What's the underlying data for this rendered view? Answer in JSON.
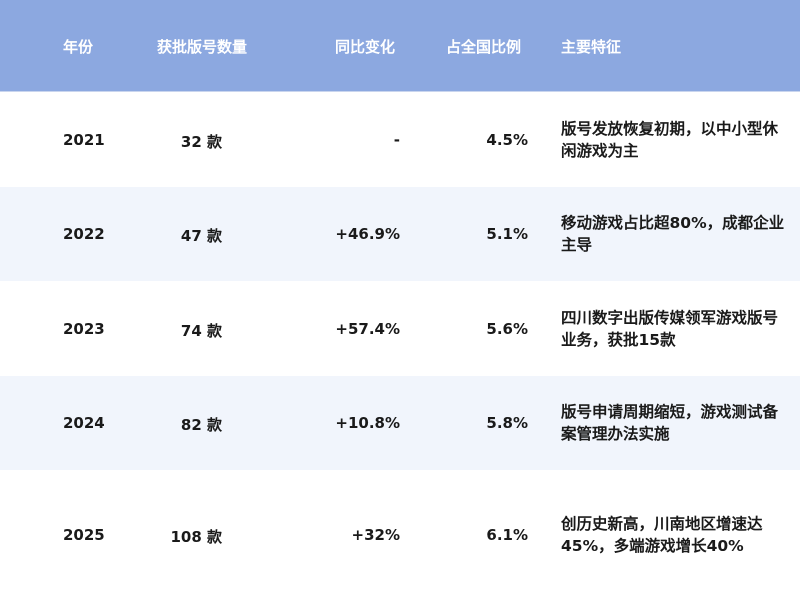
{
  "header": {
    "year": "年份",
    "count": "获批版号数量",
    "change": "同比变化",
    "ratio": "占全国比例",
    "features": "主要特征"
  },
  "colors": {
    "header_bg": "#8ca8e0",
    "alt_row_bg": "#f1f5fc"
  },
  "rows": [
    {
      "year": "2021",
      "count": "32 款",
      "change": "-",
      "ratio": "4.5%",
      "features": "版号发放恢复初期，以中小型休闲游戏为主"
    },
    {
      "year": "2022",
      "count": "47 款",
      "change": "+46.9%",
      "ratio": "5.1%",
      "features": "移动游戏占比超80%，成都企业主导"
    },
    {
      "year": "2023",
      "count": "74 款",
      "change": "+57.4%",
      "ratio": "5.6%",
      "features": "四川数字出版传媒领军游戏版号业务，获批15款"
    },
    {
      "year": "2024",
      "count": "82 款",
      "change": "+10.8%",
      "ratio": "5.8%",
      "features": "版号申请周期缩短，游戏测试备案管理办法实施"
    },
    {
      "year": "2025",
      "count": "108 款",
      "change": "+32%",
      "ratio": "6.1%",
      "features": "创历史新高，川南地区增速达45%，多端游戏增长40%"
    }
  ]
}
